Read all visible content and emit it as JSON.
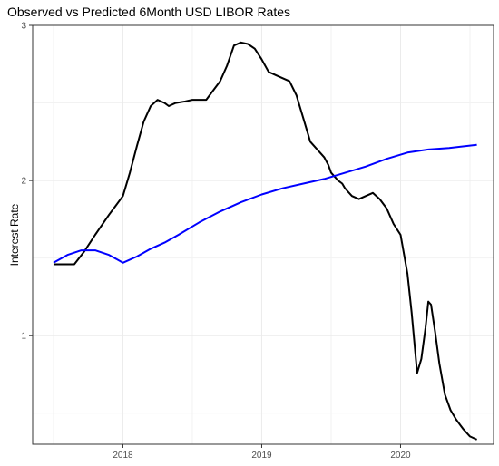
{
  "chart_data": {
    "type": "line",
    "title": "Observed vs Predicted 6Month USD LIBOR Rates",
    "xlabel": "",
    "ylabel": "Interest Rate",
    "xlim": [
      2017.35,
      2020.67
    ],
    "ylim": [
      0.3,
      3.0
    ],
    "x_ticks": [
      2018,
      2019,
      2020
    ],
    "x_tick_labels": [
      "2018",
      "2019",
      "2020"
    ],
    "y_ticks": [
      1,
      2,
      3
    ],
    "y_tick_labels": [
      "1",
      "2",
      "3"
    ],
    "grid": true,
    "legend": "none",
    "series": [
      {
        "color": "#000000",
        "x": [
          2017.5,
          2017.57,
          2017.65,
          2017.72,
          2017.8,
          2017.9,
          2018.0,
          2018.05,
          2018.1,
          2018.15,
          2018.2,
          2018.25,
          2018.3,
          2018.33,
          2018.38,
          2018.45,
          2018.5,
          2018.6,
          2018.65,
          2018.7,
          2018.75,
          2018.8,
          2018.85,
          2018.9,
          2018.95,
          2019.0,
          2019.05,
          2019.1,
          2019.15,
          2019.2,
          2019.25,
          2019.3,
          2019.35,
          2019.4,
          2019.45,
          2019.48,
          2019.5,
          2019.53,
          2019.55,
          2019.58,
          2019.6,
          2019.62,
          2019.65,
          2019.7,
          2019.75,
          2019.8,
          2019.85,
          2019.9,
          2019.95,
          2020.0,
          2020.05,
          2020.08,
          2020.12,
          2020.15,
          2020.18,
          2020.2,
          2020.22,
          2020.25,
          2020.28,
          2020.32,
          2020.36,
          2020.4,
          2020.45,
          2020.5,
          2020.55
        ],
        "y": [
          1.46,
          1.46,
          1.46,
          1.54,
          1.65,
          1.78,
          1.9,
          2.05,
          2.22,
          2.38,
          2.48,
          2.52,
          2.5,
          2.48,
          2.5,
          2.51,
          2.52,
          2.52,
          2.58,
          2.64,
          2.74,
          2.87,
          2.89,
          2.88,
          2.85,
          2.78,
          2.7,
          2.68,
          2.66,
          2.64,
          2.55,
          2.4,
          2.25,
          2.2,
          2.15,
          2.1,
          2.05,
          2.02,
          2.0,
          1.98,
          1.95,
          1.93,
          1.9,
          1.88,
          1.9,
          1.92,
          1.88,
          1.82,
          1.72,
          1.65,
          1.4,
          1.15,
          0.76,
          0.85,
          1.05,
          1.22,
          1.2,
          1.02,
          0.82,
          0.62,
          0.52,
          0.46,
          0.4,
          0.35,
          0.33
        ]
      },
      {
        "color": "#0000ff",
        "x": [
          2017.5,
          2017.6,
          2017.7,
          2017.8,
          2017.9,
          2018.0,
          2018.1,
          2018.2,
          2018.3,
          2018.4,
          2018.55,
          2018.7,
          2018.85,
          2019.0,
          2019.15,
          2019.3,
          2019.45,
          2019.6,
          2019.75,
          2019.9,
          2020.05,
          2020.2,
          2020.35,
          2020.55
        ],
        "y": [
          1.47,
          1.52,
          1.55,
          1.55,
          1.52,
          1.47,
          1.51,
          1.56,
          1.6,
          1.65,
          1.73,
          1.8,
          1.86,
          1.91,
          1.95,
          1.98,
          2.01,
          2.05,
          2.09,
          2.14,
          2.18,
          2.2,
          2.21,
          2.23
        ]
      }
    ]
  }
}
